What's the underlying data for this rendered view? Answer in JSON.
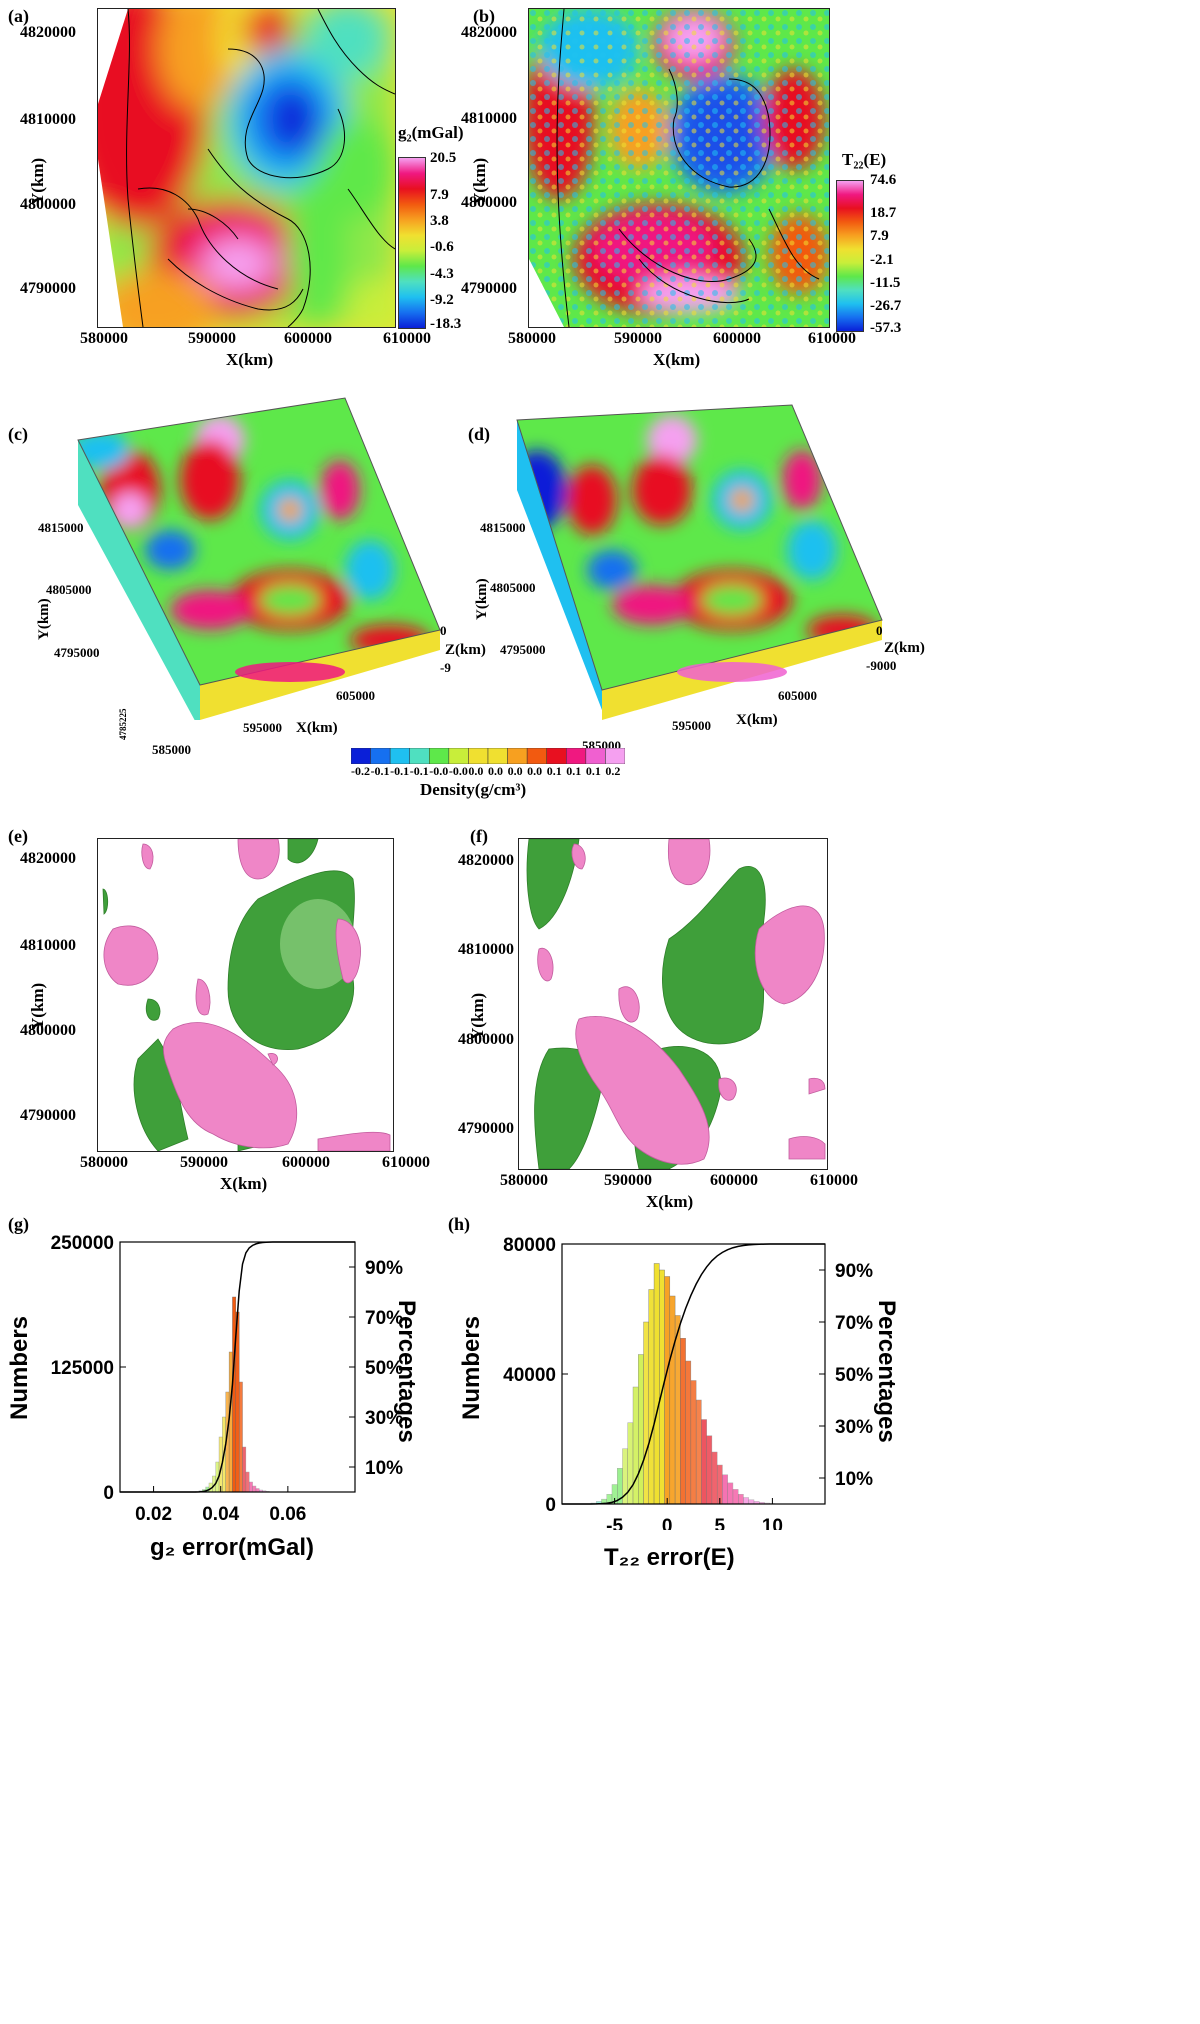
{
  "panels": {
    "a": {
      "label": "(a)",
      "colorbar_title": "g₂(mGal)",
      "colorbar_ticks": [
        "20.5",
        "7.9",
        "3.8",
        "-0.6",
        "-4.3",
        "-9.2",
        "-18.3"
      ],
      "xticks": [
        "580000",
        "590000",
        "600000",
        "610000"
      ],
      "yticks": [
        "4820000",
        "4810000",
        "4800000",
        "4790000"
      ],
      "xlabel": "X(km)",
      "ylabel": "Y(km)"
    },
    "b": {
      "label": "(b)",
      "colorbar_title": "T₂₂(E)",
      "colorbar_ticks": [
        "74.6",
        "18.7",
        "7.9",
        "-2.1",
        "-11.5",
        "-26.7",
        "-57.3"
      ],
      "xticks": [
        "580000",
        "590000",
        "600000",
        "610000"
      ],
      "yticks": [
        "4820000",
        "4810000",
        "4800000",
        "4790000"
      ],
      "xlabel": "X(km)",
      "ylabel": "Y(km)"
    },
    "c": {
      "label": "(c)",
      "yticks": [
        "4815000",
        "4805000",
        "4795000"
      ],
      "xticks": [
        "585000",
        "595000",
        "605000"
      ],
      "zticks": [
        "0",
        "-9"
      ],
      "xlabel": "X(km)",
      "ylabel": "Y(km)",
      "zlabel": "Z(km)",
      "corner_tick": "4785225"
    },
    "d": {
      "label": "(d)",
      "yticks": [
        "4815000",
        "4805000",
        "4795000"
      ],
      "xticks": [
        "585000",
        "595000",
        "605000"
      ],
      "zticks": [
        "0",
        "-9000"
      ],
      "xlabel": "X(km)",
      "ylabel": "Y(km)",
      "zlabel": "Z(km)"
    },
    "density_bar": {
      "ticks": [
        "-0.2",
        "-0.1",
        "-0.1",
        "-0.1",
        "-0.0",
        "-0.0",
        "0.0",
        "0.0",
        "0.0",
        "0.0",
        "0.1",
        "0.1",
        "0.1",
        "0.2"
      ],
      "title": "Density(g/cm³)"
    },
    "e": {
      "label": "(e)",
      "xticks": [
        "580000",
        "590000",
        "600000",
        "610000"
      ],
      "yticks": [
        "4820000",
        "4810000",
        "4800000",
        "4790000"
      ],
      "xlabel": "X(km)",
      "ylabel": "Y(km)"
    },
    "f": {
      "label": "(f)",
      "xticks": [
        "580000",
        "590000",
        "600000",
        "610000"
      ],
      "yticks": [
        "4820000",
        "4810000",
        "4800000",
        "4790000"
      ],
      "xlabel": "X(km)",
      "ylabel": "Y(km)"
    },
    "g": {
      "label": "(g)",
      "xlabel": "g₂ error(mGal)",
      "ylabel": "Numbers",
      "ylabel2": "Percentages"
    },
    "h": {
      "label": "(h)",
      "xlabel": "T₂₂ error(E)",
      "ylabel": "Numbers",
      "ylabel2": "Percentages"
    }
  },
  "colors": {
    "spectral": [
      "#0a1fd8",
      "#1670f0",
      "#1fc0f0",
      "#4fe0c0",
      "#5ee84a",
      "#c8ee3a",
      "#f0e030",
      "#f7a020",
      "#f25a10",
      "#e81020",
      "#f01880",
      "#f060d0",
      "#f5a0f0"
    ],
    "pink": "#ef86c7",
    "green": "#3f9f3a",
    "line": "#000000"
  },
  "chart_data": [
    {
      "type": "histogram",
      "panel": "g",
      "xlabel": "g₂ error(mGal)",
      "ylabel": "Numbers",
      "y2label": "Percentages",
      "xlim": [
        0.01,
        0.08
      ],
      "ylim": [
        0,
        250000
      ],
      "xticks": [
        0.02,
        0.04,
        0.06
      ],
      "xtick_labels": [
        "0.02",
        "0.04",
        "0.06"
      ],
      "yticks": [
        0,
        125000,
        250000
      ],
      "ytick_labels": [
        "0",
        "125000",
        "250000"
      ],
      "y2ticks": [
        0.1,
        0.3,
        0.5,
        0.7,
        0.9
      ],
      "y2tick_labels": [
        "10%",
        "30%",
        "50%",
        "70%",
        "90%"
      ],
      "bins": [
        0.033,
        0.034,
        0.035,
        0.036,
        0.037,
        0.038,
        0.039,
        0.04,
        0.041,
        0.042,
        0.043,
        0.044,
        0.045,
        0.046,
        0.047,
        0.048,
        0.049,
        0.05,
        0.051,
        0.052,
        0.053,
        0.054,
        0.055
      ],
      "counts": [
        500,
        1200,
        2500,
        5000,
        9000,
        16000,
        30000,
        55000,
        75000,
        100000,
        140000,
        195000,
        180000,
        110000,
        45000,
        20000,
        10000,
        6000,
        3500,
        2000,
        1200,
        600,
        300
      ]
    },
    {
      "type": "histogram",
      "panel": "h",
      "xlabel": "T₂₂ error(E)",
      "ylabel": "Numbers",
      "y2label": "Percentages",
      "xlim": [
        -10,
        15
      ],
      "ylim": [
        0,
        80000
      ],
      "xticks": [
        -5,
        0,
        5,
        10
      ],
      "xtick_labels": [
        "-5",
        "0",
        "5",
        "10"
      ],
      "yticks": [
        0,
        40000,
        80000
      ],
      "ytick_labels": [
        "0",
        "40000",
        "80000"
      ],
      "y2ticks": [
        0.1,
        0.3,
        0.5,
        0.7,
        0.9
      ],
      "y2tick_labels": [
        "10%",
        "30%",
        "50%",
        "70%",
        "90%"
      ],
      "bins": [
        -7,
        -6.5,
        -6,
        -5.5,
        -5,
        -4.5,
        -4,
        -3.5,
        -3,
        -2.5,
        -2,
        -1.5,
        -1,
        -0.5,
        0,
        0.5,
        1,
        1.5,
        2,
        2.5,
        3,
        3.5,
        4,
        4.5,
        5,
        5.5,
        6,
        6.5,
        7,
        7.5,
        8,
        8.5,
        9,
        9.5,
        10
      ],
      "counts": [
        300,
        800,
        1500,
        3000,
        6000,
        11000,
        17000,
        25000,
        36000,
        46000,
        56000,
        66000,
        74000,
        72000,
        70000,
        64000,
        58000,
        51000,
        44000,
        38000,
        32000,
        26000,
        21000,
        16000,
        12000,
        9000,
        6500,
        4500,
        3000,
        2000,
        1300,
        800,
        500,
        300,
        150
      ]
    }
  ]
}
